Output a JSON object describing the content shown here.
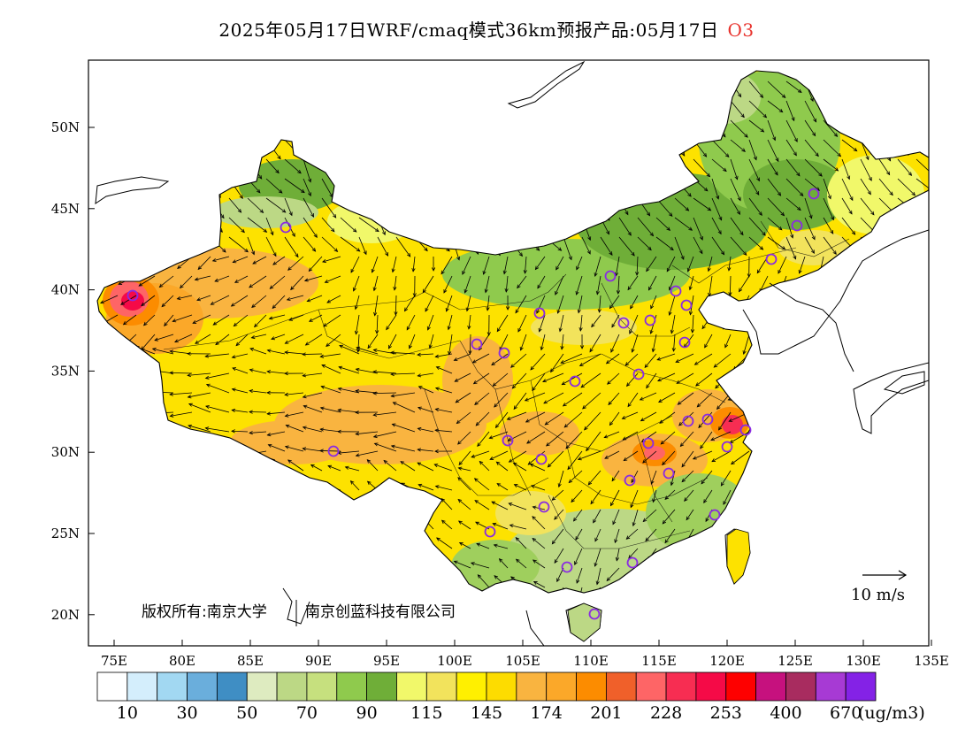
{
  "header": {
    "title": "2025年05月17日WRF/cmaq模式36km预报产品:05月17日",
    "species": "O3"
  },
  "axes": {
    "lon_labels": [
      "75E",
      "80E",
      "85E",
      "90E",
      "95E",
      "100E",
      "105E",
      "110E",
      "115E",
      "120E",
      "125E",
      "130E",
      "135E"
    ],
    "lat_labels": [
      "50N",
      "45N",
      "40N",
      "35N",
      "30N",
      "25N",
      "20N"
    ]
  },
  "credit": {
    "part1": "版权所有:南京大学",
    "part2": "南京创蓝科技有限公司"
  },
  "wind_reference": {
    "label": "10 m/s"
  },
  "legend": {
    "colors": [
      "#ffffff",
      "#d4eefc",
      "#a2d8f2",
      "#6aaedc",
      "#3f8ec4",
      "#deebc0",
      "#bcd885",
      "#c6e07e",
      "#8fca4d",
      "#6fae38",
      "#f1f86a",
      "#f2e35c",
      "#fff000",
      "#fddc00",
      "#f9b440",
      "#fba829",
      "#fc8c00",
      "#f0602a",
      "#fe6566",
      "#f72d52",
      "#f50a47",
      "#fe0000",
      "#c6117e",
      "#a82c5f",
      "#a73ad4",
      "#8422e6"
    ],
    "labels": [
      "10",
      "30",
      "50",
      "70",
      "90",
      "115",
      "145",
      "174",
      "201",
      "228",
      "253",
      "400",
      "670"
    ],
    "unit": "(ug/m3)"
  }
}
